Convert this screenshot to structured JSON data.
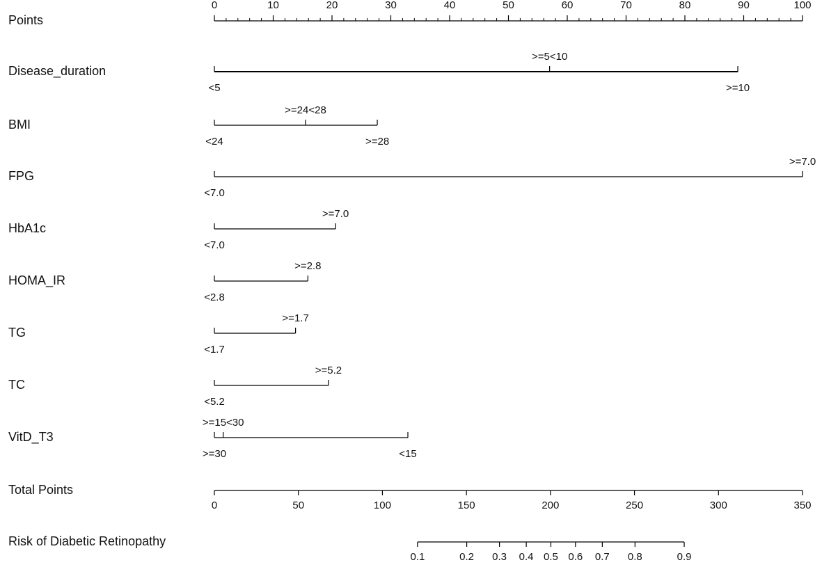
{
  "chart_data": {
    "type": "nomogram",
    "points_axis": {
      "label": "Points",
      "lim": [
        0,
        100
      ],
      "ticks": [
        0,
        10,
        20,
        30,
        40,
        50,
        60,
        70,
        80,
        90,
        100
      ],
      "minor_ticks": [
        2,
        4,
        6,
        8,
        12,
        14,
        16,
        18,
        22,
        24,
        26,
        28,
        32,
        34,
        36,
        38,
        42,
        44,
        46,
        48,
        52,
        54,
        56,
        58,
        62,
        64,
        66,
        68,
        72,
        74,
        76,
        78,
        82,
        84,
        86,
        88,
        92,
        94,
        96,
        98
      ]
    },
    "variables": [
      {
        "name": "Disease_duration",
        "levels": [
          {
            "label": "<5",
            "points": 0
          },
          {
            "label": ">=5<10",
            "points": 57
          },
          {
            "label": ">=10",
            "points": 89
          }
        ]
      },
      {
        "name": "BMI",
        "levels": [
          {
            "label": "<24",
            "points": 0
          },
          {
            "label": ">=24<28",
            "points": 15.5
          },
          {
            "label": ">=28",
            "points": 27.7
          }
        ]
      },
      {
        "name": "FPG",
        "levels": [
          {
            "label": "<7.0",
            "points": 0
          },
          {
            "label": ">=7.0",
            "points": 100
          }
        ]
      },
      {
        "name": "HbA1c",
        "levels": [
          {
            "label": "<7.0",
            "points": 0
          },
          {
            "label": ">=7.0",
            "points": 20.6
          }
        ]
      },
      {
        "name": "HOMA_IR",
        "levels": [
          {
            "label": "<2.8",
            "points": 0
          },
          {
            "label": ">=2.8",
            "points": 15.9
          }
        ]
      },
      {
        "name": "TG",
        "levels": [
          {
            "label": "<1.7",
            "points": 0
          },
          {
            "label": ">=1.7",
            "points": 13.8
          }
        ]
      },
      {
        "name": "TC",
        "levels": [
          {
            "label": "<5.2",
            "points": 0
          },
          {
            "label": ">=5.2",
            "points": 19.4
          }
        ]
      },
      {
        "name": "VitD_T3",
        "levels": [
          {
            "label": ">=30",
            "points": 0
          },
          {
            "label": ">=15<30",
            "points": 1.5
          },
          {
            "label": "<15",
            "points": 32.9
          }
        ]
      }
    ],
    "total_points": {
      "label": "Total Points",
      "lim": [
        0,
        350
      ],
      "ticks": [
        0,
        50,
        100,
        150,
        200,
        250,
        300,
        350
      ]
    },
    "risk": {
      "label": "Risk of Diabetic Retinopathy",
      "scale": "logit",
      "intercept": -5.545,
      "slope": 0.02769,
      "ticks": [
        0.1,
        0.2,
        0.3,
        0.4,
        0.5,
        0.6,
        0.7,
        0.8,
        0.9
      ]
    },
    "color": "#000000"
  }
}
